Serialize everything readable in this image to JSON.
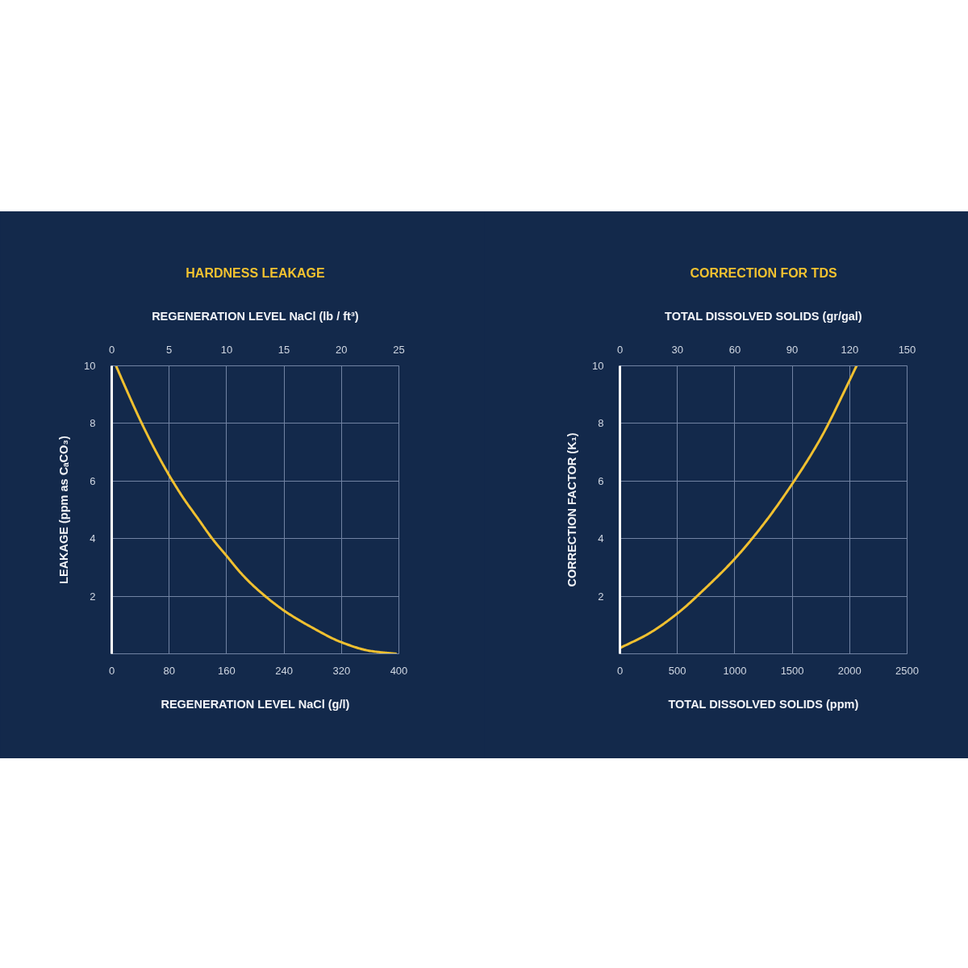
{
  "chart_data": [
    {
      "type": "line",
      "title": "HARDNESS LEAKAGE",
      "xlabel": "REGENERATION LEVEL NaCl (g/l)",
      "x2label": "REGENERATION LEVEL NaCl (lb / ft³)",
      "ylabel": "LEAKAGE (ppm as CₐCO₃)",
      "xlim": [
        0,
        400
      ],
      "xticks": [
        0,
        80,
        160,
        240,
        320,
        400
      ],
      "x2lim": [
        0,
        25
      ],
      "x2ticks": [
        0,
        5,
        10,
        15,
        20,
        25
      ],
      "ylim": [
        0,
        10
      ],
      "yticks": [
        2,
        4,
        6,
        8,
        10
      ],
      "grid": true,
      "line_style": "solid",
      "x": [
        6,
        20,
        40,
        60,
        80,
        100,
        120,
        140,
        160,
        180,
        200,
        240,
        280,
        320,
        360,
        396
      ],
      "series": [
        {
          "color": "#f0c030",
          "values": [
            10,
            9.2,
            8.1,
            7.1,
            6.2,
            5.4,
            4.7,
            4.0,
            3.4,
            2.8,
            2.3,
            1.5,
            0.9,
            0.4,
            0.1,
            0
          ]
        }
      ]
    },
    {
      "type": "line",
      "title": "CORRECTION FOR TDS",
      "xlabel": "TOTAL DISSOLVED SOLIDS (ppm)",
      "x2label": "TOTAL DISSOLVED SOLIDS (gr/gal)",
      "ylabel": "CORRECTION FACTOR (K₁)",
      "xlim": [
        0,
        2500
      ],
      "xticks": [
        0,
        500,
        1000,
        1500,
        2000,
        2500
      ],
      "x2lim": [
        0,
        150
      ],
      "x2ticks": [
        0,
        30,
        60,
        90,
        120,
        150
      ],
      "ylim": [
        0,
        10
      ],
      "yticks": [
        2,
        4,
        6,
        8,
        10
      ],
      "grid": true,
      "line_style": "solid",
      "x": [
        0,
        250,
        500,
        750,
        1000,
        1250,
        1500,
        1750,
        2000,
        2060
      ],
      "series": [
        {
          "color": "#f0c030",
          "values": [
            0.2,
            0.7,
            1.4,
            2.3,
            3.3,
            4.5,
            5.9,
            7.5,
            9.5,
            10
          ]
        }
      ]
    }
  ]
}
